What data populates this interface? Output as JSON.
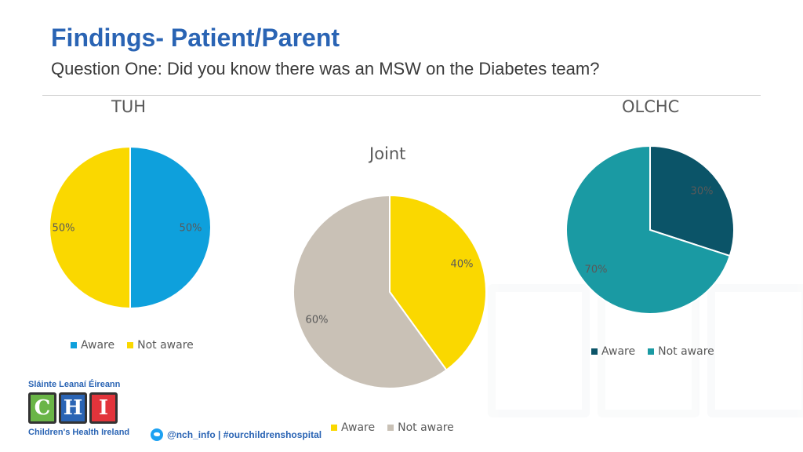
{
  "header": {
    "title": "Findings- Patient/Parent",
    "subtitle": "Question One: Did you know there was an MSW on the Diabetes team?"
  },
  "colors": {
    "title": "#2a64b4",
    "aware_tuh": "#0ea0dc",
    "not_aware_yellow": "#fad800",
    "joint_not_aware": "#c9c1b6",
    "olchc_aware": "#0b5468",
    "olchc_not_aware": "#1a9aa3"
  },
  "chart_data": [
    {
      "type": "pie",
      "title": "TUH",
      "categories": [
        "Aware",
        "Not aware"
      ],
      "values": [
        50,
        50
      ],
      "data_labels": [
        "50%",
        "50%"
      ],
      "colors": [
        "#0ea0dc",
        "#fad800"
      ],
      "legend": [
        "Aware",
        "Not aware"
      ],
      "legend_position": "bottom"
    },
    {
      "type": "pie",
      "title": "Joint",
      "categories": [
        "Aware",
        "Not aware"
      ],
      "values": [
        40,
        60
      ],
      "data_labels": [
        "40%",
        "60%"
      ],
      "colors": [
        "#fad800",
        "#c9c1b6"
      ],
      "legend": [
        "Aware",
        "Not aware"
      ],
      "legend_position": "bottom"
    },
    {
      "type": "pie",
      "title": "OLCHC",
      "categories": [
        "Aware",
        "Not aware"
      ],
      "values": [
        30,
        70
      ],
      "data_labels": [
        "30%",
        "70%"
      ],
      "colors": [
        "#0b5468",
        "#1a9aa3"
      ],
      "legend": [
        "Aware",
        "Not aware"
      ],
      "legend_position": "bottom"
    }
  ],
  "footer": {
    "logo_top": "Sláinte Leanaí Éireann",
    "logo_letters": [
      "C",
      "H",
      "I"
    ],
    "logo_bottom": "Children's Health Ireland",
    "social": "@nch_info | #ourchildrenshospital",
    "social_icon": "twitter-icon"
  }
}
